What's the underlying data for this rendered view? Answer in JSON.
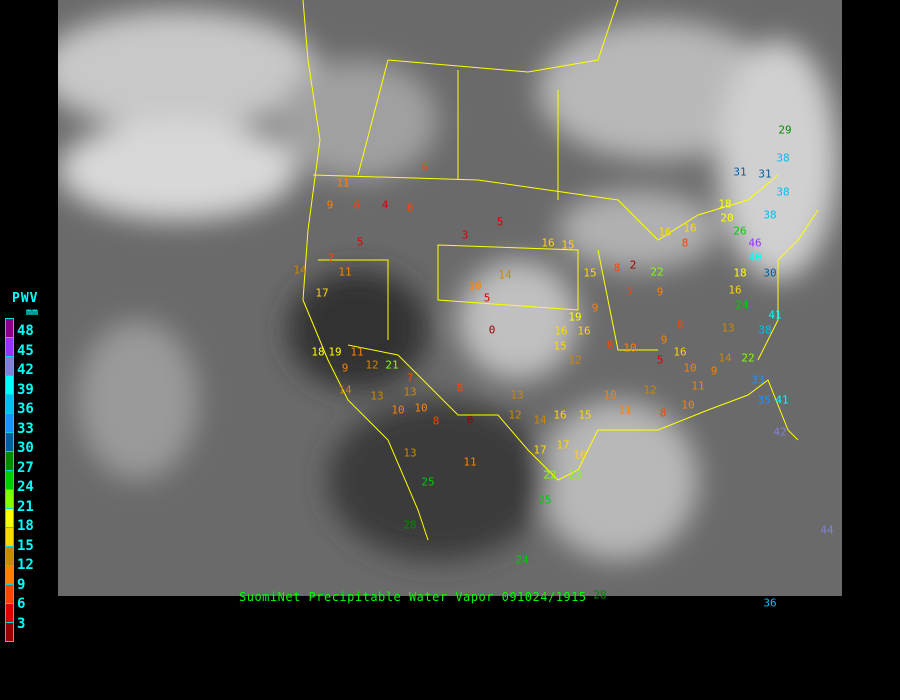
{
  "caption": "SuomiNet Precipitable Water Vapor 091024/1915",
  "legend": {
    "title": "PWV",
    "unit": "mm",
    "labels": [
      "48",
      "45",
      "42",
      "39",
      "36",
      "33",
      "30",
      "27",
      "24",
      "21",
      "18",
      "15",
      "12",
      "9",
      "6",
      "3"
    ],
    "colors": [
      "#8b008b",
      "#9b30ff",
      "#8080d8",
      "#00ffff",
      "#00c0f0",
      "#1e90ff",
      "#005f9f",
      "#008b00",
      "#00cc00",
      "#7fff00",
      "#ffff00",
      "#ffd700",
      "#cc8800",
      "#ff8000",
      "#ff4400",
      "#dd0000",
      "#990000"
    ]
  },
  "map_colors": {
    "background": "#6a6a6a",
    "boundaries": "#ffff00"
  },
  "stations": [
    "29",
    "38",
    "31",
    "31",
    "38",
    "38",
    "18",
    "20",
    "26",
    "46",
    "40",
    "30",
    "18",
    "16",
    "24",
    "41",
    "38",
    "13",
    "14",
    "22",
    "33",
    "35",
    "41",
    "42",
    "6",
    "11",
    "9",
    "6",
    "4",
    "8",
    "5",
    "7",
    "14",
    "17",
    "11",
    "3",
    "5",
    "16",
    "15",
    "14",
    "10",
    "5",
    "0",
    "15",
    "8",
    "2",
    "16",
    "16",
    "8",
    "22",
    "9",
    "9",
    "7",
    "19",
    "16",
    "16",
    "15",
    "12",
    "8",
    "10",
    "9",
    "8",
    "16",
    "5",
    "10",
    "12",
    "10",
    "11",
    "15",
    "16",
    "14",
    "13",
    "12",
    "17",
    "17",
    "22",
    "16",
    "23",
    "25",
    "24",
    "11",
    "13",
    "25",
    "28",
    "18",
    "19",
    "9",
    "11",
    "12",
    "21",
    "7",
    "13",
    "10",
    "8",
    "0",
    "14",
    "13",
    "10",
    "8",
    "28",
    "36",
    "44",
    "11",
    "9",
    "8",
    "10"
  ]
}
